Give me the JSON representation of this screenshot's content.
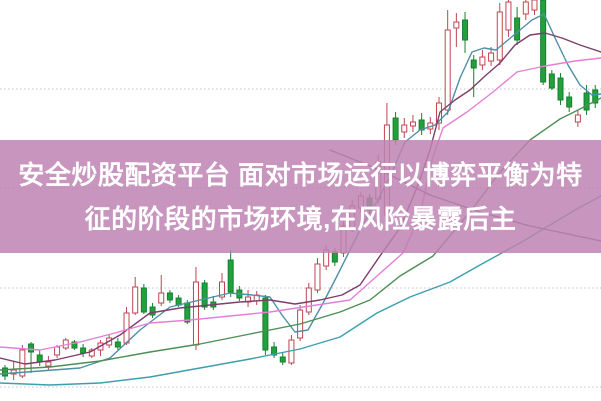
{
  "banner": {
    "line1": "安全炒股配资平台 面对市场运行以博弈平衡为特",
    "line2": "征的阶段的市场环境,在风险暴露后主",
    "background_color": "#bd82b2",
    "text_color": "#ffffff",
    "opacity": 0.85
  },
  "chart_data": {
    "type": "candlestick",
    "title": "",
    "xlabel": "",
    "ylabel": "",
    "background": "#ffffff",
    "grid_on": true,
    "gridline_prices": [
      77.75,
      53,
      28,
      3.25
    ],
    "gridline_color": "#c9c0c9",
    "ylim": [
      0,
      100
    ],
    "note": "unitless price scale read from chart geometry; red hollow = up candle, green solid = down candle",
    "bull_color": "#bf4550",
    "bull_fill": "#ffffff",
    "bear_color": "#158030",
    "bear_fill": "#21a13c",
    "candles_ohlc": [
      [
        8,
        8.75,
        5,
        6
      ],
      [
        6.5,
        9.5,
        5,
        7.5
      ],
      [
        6,
        13.75,
        5.5,
        12.5
      ],
      [
        14,
        14.5,
        6.75,
        12
      ],
      [
        11.25,
        12.5,
        8.5,
        9.5
      ],
      [
        8.5,
        11,
        7.5,
        9.5
      ],
      [
        11.25,
        13.75,
        10.5,
        13.25
      ],
      [
        13,
        15.5,
        12.5,
        15
      ],
      [
        14.5,
        15,
        12.5,
        13
      ],
      [
        13,
        14,
        10.75,
        11.75
      ],
      [
        11,
        13,
        10.5,
        12.5
      ],
      [
        12.5,
        15,
        11,
        14.25
      ],
      [
        13.75,
        16.25,
        13,
        15.5
      ],
      [
        14.5,
        15.5,
        12.5,
        13.25
      ],
      [
        14.25,
        23.25,
        13.75,
        21.75
      ],
      [
        21.75,
        30.75,
        21.25,
        28.25
      ],
      [
        28,
        29,
        21.5,
        22
      ],
      [
        23.25,
        24.25,
        20.5,
        21.25
      ],
      [
        24.25,
        31.25,
        23.5,
        26.75
      ],
      [
        26.75,
        27.5,
        24.25,
        25
      ],
      [
        25.5,
        26.25,
        23.25,
        23.75
      ],
      [
        24.25,
        25,
        19,
        19.5
      ],
      [
        13.75,
        33.25,
        12.5,
        29.5
      ],
      [
        29.25,
        30,
        22.5,
        23.25
      ],
      [
        24.5,
        26,
        22.5,
        23.25
      ],
      [
        25.75,
        31.75,
        25,
        29.5
      ],
      [
        35,
        37.5,
        25.75,
        27
      ],
      [
        27.5,
        28.5,
        24.75,
        25.5
      ],
      [
        24.5,
        27.5,
        23.25,
        25.75
      ],
      [
        24.75,
        27.25,
        23.75,
        26.25
      ],
      [
        25.5,
        26.25,
        11.25,
        12.5
      ],
      [
        13.25,
        14.5,
        10.5,
        11.25
      ],
      [
        10.75,
        12,
        8.75,
        9.5
      ],
      [
        9.25,
        16.25,
        8.75,
        15
      ],
      [
        15.5,
        23.75,
        14.75,
        22.5
      ],
      [
        22,
        29.25,
        21.25,
        28
      ],
      [
        27.5,
        35.5,
        26.75,
        34
      ],
      [
        33.5,
        38.75,
        32.5,
        37.5
      ],
      [
        37,
        38,
        33.5,
        34.5
      ],
      [
        36.75,
        45,
        35.75,
        43.5
      ],
      [
        43,
        50,
        42,
        48.5
      ],
      [
        48,
        52,
        47,
        51
      ],
      [
        50.5,
        51.5,
        46.5,
        47.5
      ],
      [
        50.25,
        61.25,
        49.25,
        59.5
      ],
      [
        46.25,
        74.25,
        45.5,
        68.75
      ],
      [
        70.5,
        72,
        63.75,
        65
      ],
      [
        67,
        70.5,
        65.5,
        68.75
      ],
      [
        68.5,
        71.25,
        67,
        69.5
      ],
      [
        70,
        71.75,
        66.25,
        67.5
      ],
      [
        67.75,
        70.75,
        66.5,
        69.25
      ],
      [
        69.25,
        75.75,
        67.5,
        74.25
      ],
      [
        72.5,
        97.5,
        71.25,
        92.5
      ],
      [
        93,
        96.75,
        88.25,
        94.5
      ],
      [
        95,
        97,
        86.75,
        90
      ],
      [
        85,
        86.25,
        75.75,
        83
      ],
      [
        83.75,
        87.5,
        82.5,
        85.75
      ],
      [
        84.75,
        88.25,
        83.5,
        86.75
      ],
      [
        85,
        99.25,
        83.75,
        97
      ],
      [
        92.5,
        100,
        90.75,
        99.5
      ],
      [
        95.5,
        98.25,
        88.75,
        90
      ],
      [
        96.5,
        100,
        95,
        99.5
      ],
      [
        97.5,
        100,
        96.25,
        100
      ],
      [
        100,
        100,
        78.75,
        79.5
      ],
      [
        81.5,
        82.5,
        77.5,
        78
      ],
      [
        80.5,
        81.75,
        73.75,
        75
      ],
      [
        75.75,
        77,
        72,
        73.25
      ],
      [
        69.5,
        72.5,
        68.25,
        71.25
      ],
      [
        76.75,
        78.75,
        71.25,
        72.5
      ],
      [
        77.5,
        78.75,
        73,
        74.25
      ]
    ],
    "moving_averages": [
      {
        "name": "ma-short",
        "color": "#4e8fa8",
        "points": [
          [
            0,
            6.5
          ],
          [
            40,
            7.25
          ],
          [
            80,
            8
          ],
          [
            110,
            10.5
          ],
          [
            140,
            17.5
          ],
          [
            170,
            23.25
          ],
          [
            200,
            25
          ],
          [
            230,
            26.75
          ],
          [
            252,
            26.25
          ],
          [
            270,
            25.75
          ],
          [
            282,
            21.25
          ],
          [
            295,
            17
          ],
          [
            308,
            17.5
          ],
          [
            322,
            23.75
          ],
          [
            336,
            30.5
          ],
          [
            350,
            37.5
          ],
          [
            364,
            44.5
          ],
          [
            378,
            50
          ],
          [
            392,
            57
          ],
          [
            405,
            64.5
          ],
          [
            420,
            67.5
          ],
          [
            435,
            68.75
          ],
          [
            448,
            72
          ],
          [
            460,
            80.5
          ],
          [
            472,
            87
          ],
          [
            484,
            88
          ],
          [
            496,
            87.5
          ],
          [
            508,
            90
          ],
          [
            520,
            92.5
          ],
          [
            532,
            95
          ],
          [
            544,
            96.5
          ],
          [
            556,
            90
          ],
          [
            568,
            83.75
          ],
          [
            580,
            78.75
          ],
          [
            592,
            76.25
          ],
          [
            601,
            76.5
          ]
        ]
      },
      {
        "name": "ma-purple",
        "color": "#7e3d6b",
        "points": [
          [
            0,
            10.5
          ],
          [
            25,
            9
          ],
          [
            55,
            10
          ],
          [
            90,
            12
          ],
          [
            120,
            16.25
          ],
          [
            150,
            21.75
          ],
          [
            180,
            23
          ],
          [
            210,
            23.75
          ],
          [
            240,
            24.5
          ],
          [
            270,
            25
          ],
          [
            295,
            24
          ],
          [
            320,
            25
          ],
          [
            342,
            26.25
          ],
          [
            360,
            28.75
          ],
          [
            382,
            36.75
          ],
          [
            400,
            43
          ],
          [
            418,
            53.75
          ],
          [
            430,
            62.5
          ],
          [
            440,
            72
          ],
          [
            455,
            75
          ],
          [
            470,
            77.5
          ],
          [
            485,
            81
          ],
          [
            500,
            84.25
          ],
          [
            515,
            88.75
          ],
          [
            530,
            91.25
          ],
          [
            545,
            91.75
          ],
          [
            562,
            90.5
          ],
          [
            580,
            88.75
          ],
          [
            601,
            87
          ]
        ]
      },
      {
        "name": "ma-magenta",
        "color": "#e57fd5",
        "points": [
          [
            0,
            13.25
          ],
          [
            40,
            12.5
          ],
          [
            80,
            14.5
          ],
          [
            115,
            16.75
          ],
          [
            150,
            19.25
          ],
          [
            190,
            20
          ],
          [
            230,
            21
          ],
          [
            270,
            22
          ],
          [
            310,
            23.5
          ],
          [
            350,
            25
          ],
          [
            377,
            31
          ],
          [
            403,
            36.75
          ],
          [
            420,
            46.25
          ],
          [
            432,
            60
          ],
          [
            443,
            68
          ],
          [
            467,
            72
          ],
          [
            493,
            77
          ],
          [
            517,
            82
          ],
          [
            545,
            83.5
          ],
          [
            575,
            84.75
          ],
          [
            601,
            85.5
          ]
        ]
      },
      {
        "name": "ma-green",
        "color": "#4c8f55",
        "points": [
          [
            0,
            7.5
          ],
          [
            50,
            8.25
          ],
          [
            100,
            9.75
          ],
          [
            150,
            12
          ],
          [
            200,
            14
          ],
          [
            250,
            16.5
          ],
          [
            300,
            19
          ],
          [
            340,
            22
          ],
          [
            370,
            25
          ],
          [
            400,
            31
          ],
          [
            433,
            36
          ],
          [
            470,
            47
          ],
          [
            500,
            57
          ],
          [
            530,
            65
          ],
          [
            560,
            70.25
          ],
          [
            580,
            72.75
          ],
          [
            601,
            75.5
          ]
        ]
      },
      {
        "name": "ma-teal",
        "color": "#3c9fae",
        "points": [
          [
            0,
            4.25
          ],
          [
            50,
            3.75
          ],
          [
            100,
            4.25
          ],
          [
            150,
            5.75
          ],
          [
            200,
            8
          ],
          [
            250,
            10.25
          ],
          [
            300,
            12.75
          ],
          [
            340,
            15.75
          ],
          [
            377,
            21.75
          ],
          [
            410,
            25.75
          ],
          [
            450,
            29.5
          ],
          [
            480,
            33.75
          ],
          [
            500,
            36.5
          ],
          [
            520,
            39.25
          ],
          [
            545,
            43
          ],
          [
            575,
            47.5
          ],
          [
            601,
            51
          ]
        ]
      },
      {
        "name": "ma-slate",
        "color": "#71597f",
        "points": [
          [
            330,
            62.5
          ],
          [
            380,
            57.5
          ],
          [
            430,
            51.25
          ],
          [
            480,
            47
          ],
          [
            530,
            43.5
          ],
          [
            601,
            39.75
          ]
        ]
      }
    ]
  }
}
